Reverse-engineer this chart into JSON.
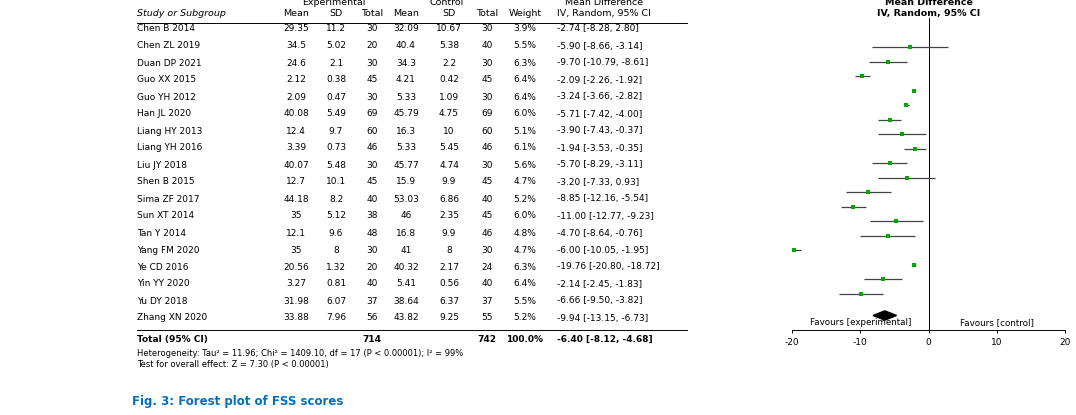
{
  "studies": [
    {
      "name": "Chen B 2014",
      "exp_mean": "29.35",
      "exp_sd": "11.2",
      "exp_n": "30",
      "ctrl_mean": "32.09",
      "ctrl_sd": "10.67",
      "ctrl_n": "30",
      "weight": "3.9%",
      "md": -2.74,
      "ci_lo": -8.28,
      "ci_hi": 2.8,
      "ci_text": "-2.74 [-8.28, 2.80]"
    },
    {
      "name": "Chen ZL 2019",
      "exp_mean": "34.5",
      "exp_sd": "5.02",
      "exp_n": "20",
      "ctrl_mean": "40.4",
      "ctrl_sd": "5.38",
      "ctrl_n": "40",
      "weight": "5.5%",
      "md": -5.9,
      "ci_lo": -8.66,
      "ci_hi": -3.14,
      "ci_text": "-5.90 [-8.66, -3.14]"
    },
    {
      "name": "Duan DP 2021",
      "exp_mean": "24.6",
      "exp_sd": "2.1",
      "exp_n": "30",
      "ctrl_mean": "34.3",
      "ctrl_sd": "2.2",
      "ctrl_n": "30",
      "weight": "6.3%",
      "md": -9.7,
      "ci_lo": -10.79,
      "ci_hi": -8.61,
      "ci_text": "-9.70 [-10.79, -8.61]"
    },
    {
      "name": "Guo XX 2015",
      "exp_mean": "2.12",
      "exp_sd": "0.38",
      "exp_n": "45",
      "ctrl_mean": "4.21",
      "ctrl_sd": "0.42",
      "ctrl_n": "45",
      "weight": "6.4%",
      "md": -2.09,
      "ci_lo": -2.26,
      "ci_hi": -1.92,
      "ci_text": "-2.09 [-2.26, -1.92]"
    },
    {
      "name": "Guo YH 2012",
      "exp_mean": "2.09",
      "exp_sd": "0.47",
      "exp_n": "30",
      "ctrl_mean": "5.33",
      "ctrl_sd": "1.09",
      "ctrl_n": "30",
      "weight": "6.4%",
      "md": -3.24,
      "ci_lo": -3.66,
      "ci_hi": -2.82,
      "ci_text": "-3.24 [-3.66, -2.82]"
    },
    {
      "name": "Han JL 2020",
      "exp_mean": "40.08",
      "exp_sd": "5.49",
      "exp_n": "69",
      "ctrl_mean": "45.79",
      "ctrl_sd": "4.75",
      "ctrl_n": "69",
      "weight": "6.0%",
      "md": -5.71,
      "ci_lo": -7.42,
      "ci_hi": -4.0,
      "ci_text": "-5.71 [-7.42, -4.00]"
    },
    {
      "name": "Liang HY 2013",
      "exp_mean": "12.4",
      "exp_sd": "9.7",
      "exp_n": "60",
      "ctrl_mean": "16.3",
      "ctrl_sd": "10",
      "ctrl_n": "60",
      "weight": "5.1%",
      "md": -3.9,
      "ci_lo": -7.43,
      "ci_hi": -0.37,
      "ci_text": "-3.90 [-7.43, -0.37]"
    },
    {
      "name": "Liang YH 2016",
      "exp_mean": "3.39",
      "exp_sd": "0.73",
      "exp_n": "46",
      "ctrl_mean": "5.33",
      "ctrl_sd": "5.45",
      "ctrl_n": "46",
      "weight": "6.1%",
      "md": -1.94,
      "ci_lo": -3.53,
      "ci_hi": -0.35,
      "ci_text": "-1.94 [-3.53, -0.35]"
    },
    {
      "name": "Liu JY 2018",
      "exp_mean": "40.07",
      "exp_sd": "5.48",
      "exp_n": "30",
      "ctrl_mean": "45.77",
      "ctrl_sd": "4.74",
      "ctrl_n": "30",
      "weight": "5.6%",
      "md": -5.7,
      "ci_lo": -8.29,
      "ci_hi": -3.11,
      "ci_text": "-5.70 [-8.29, -3.11]"
    },
    {
      "name": "Shen B 2015",
      "exp_mean": "12.7",
      "exp_sd": "10.1",
      "exp_n": "45",
      "ctrl_mean": "15.9",
      "ctrl_sd": "9.9",
      "ctrl_n": "45",
      "weight": "4.7%",
      "md": -3.2,
      "ci_lo": -7.33,
      "ci_hi": 0.93,
      "ci_text": "-3.20 [-7.33, 0.93]"
    },
    {
      "name": "Sima ZF 2017",
      "exp_mean": "44.18",
      "exp_sd": "8.2",
      "exp_n": "40",
      "ctrl_mean": "53.03",
      "ctrl_sd": "6.86",
      "ctrl_n": "40",
      "weight": "5.2%",
      "md": -8.85,
      "ci_lo": -12.16,
      "ci_hi": -5.54,
      "ci_text": "-8.85 [-12.16, -5.54]"
    },
    {
      "name": "Sun XT 2014",
      "exp_mean": "35",
      "exp_sd": "5.12",
      "exp_n": "38",
      "ctrl_mean": "46",
      "ctrl_sd": "2.35",
      "ctrl_n": "45",
      "weight": "6.0%",
      "md": -11.0,
      "ci_lo": -12.77,
      "ci_hi": -9.23,
      "ci_text": "-11.00 [-12.77, -9.23]"
    },
    {
      "name": "Tan Y 2014",
      "exp_mean": "12.1",
      "exp_sd": "9.6",
      "exp_n": "48",
      "ctrl_mean": "16.8",
      "ctrl_sd": "9.9",
      "ctrl_n": "46",
      "weight": "4.8%",
      "md": -4.7,
      "ci_lo": -8.64,
      "ci_hi": -0.76,
      "ci_text": "-4.70 [-8.64, -0.76]"
    },
    {
      "name": "Yang FM 2020",
      "exp_mean": "35",
      "exp_sd": "8",
      "exp_n": "30",
      "ctrl_mean": "41",
      "ctrl_sd": "8",
      "ctrl_n": "30",
      "weight": "4.7%",
      "md": -6.0,
      "ci_lo": -10.05,
      "ci_hi": -1.95,
      "ci_text": "-6.00 [-10.05, -1.95]"
    },
    {
      "name": "Ye CD 2016",
      "exp_mean": "20.56",
      "exp_sd": "1.32",
      "exp_n": "20",
      "ctrl_mean": "40.32",
      "ctrl_sd": "2.17",
      "ctrl_n": "24",
      "weight": "6.3%",
      "md": -19.76,
      "ci_lo": -20.8,
      "ci_hi": -18.72,
      "ci_text": "-19.76 [-20.80, -18.72]"
    },
    {
      "name": "Yin YY 2020",
      "exp_mean": "3.27",
      "exp_sd": "0.81",
      "exp_n": "40",
      "ctrl_mean": "5.41",
      "ctrl_sd": "0.56",
      "ctrl_n": "40",
      "weight": "6.4%",
      "md": -2.14,
      "ci_lo": -2.45,
      "ci_hi": -1.83,
      "ci_text": "-2.14 [-2.45, -1.83]"
    },
    {
      "name": "Yu DY 2018",
      "exp_mean": "31.98",
      "exp_sd": "6.07",
      "exp_n": "37",
      "ctrl_mean": "38.64",
      "ctrl_sd": "6.37",
      "ctrl_n": "37",
      "weight": "5.5%",
      "md": -6.66,
      "ci_lo": -9.5,
      "ci_hi": -3.82,
      "ci_text": "-6.66 [-9.50, -3.82]"
    },
    {
      "name": "Zhang XN 2020",
      "exp_mean": "33.88",
      "exp_sd": "7.96",
      "exp_n": "56",
      "ctrl_mean": "43.82",
      "ctrl_sd": "9.25",
      "ctrl_n": "55",
      "weight": "5.2%",
      "md": -9.94,
      "ci_lo": -13.15,
      "ci_hi": -6.73,
      "ci_text": "-9.94 [-13.15, -6.73]"
    }
  ],
  "total": {
    "exp_n": "714",
    "ctrl_n": "742",
    "weight": "100.0%",
    "md": -6.4,
    "ci_lo": -8.12,
    "ci_hi": -4.68,
    "ci_text": "-6.40 [-8.12, -4.68]"
  },
  "heterogeneity_text": "Heterogeneity: Tau² = 11.96; Chi² = 1409.10, df = 17 (P < 0.00001); I² = 99%",
  "overall_effect_text": "Test for overall effect: Z = 7.30 (P < 0.00001)",
  "x_min": -20,
  "x_max": 20,
  "x_ticks": [
    -20,
    -10,
    0,
    10,
    20
  ],
  "xlabel_left": "Favours [experimental]",
  "xlabel_right": "Favours [control]",
  "point_color": "#00aa00",
  "diamond_color": "#000000",
  "ci_line_color": "#444444",
  "zero_line_color": "#000000",
  "fig_caption": "Fig. 3: Forest plot of FSS scores",
  "caption_color": "#0070c0",
  "background_color": "#ffffff",
  "fontsize": 6.5,
  "header_fontsize": 6.8
}
